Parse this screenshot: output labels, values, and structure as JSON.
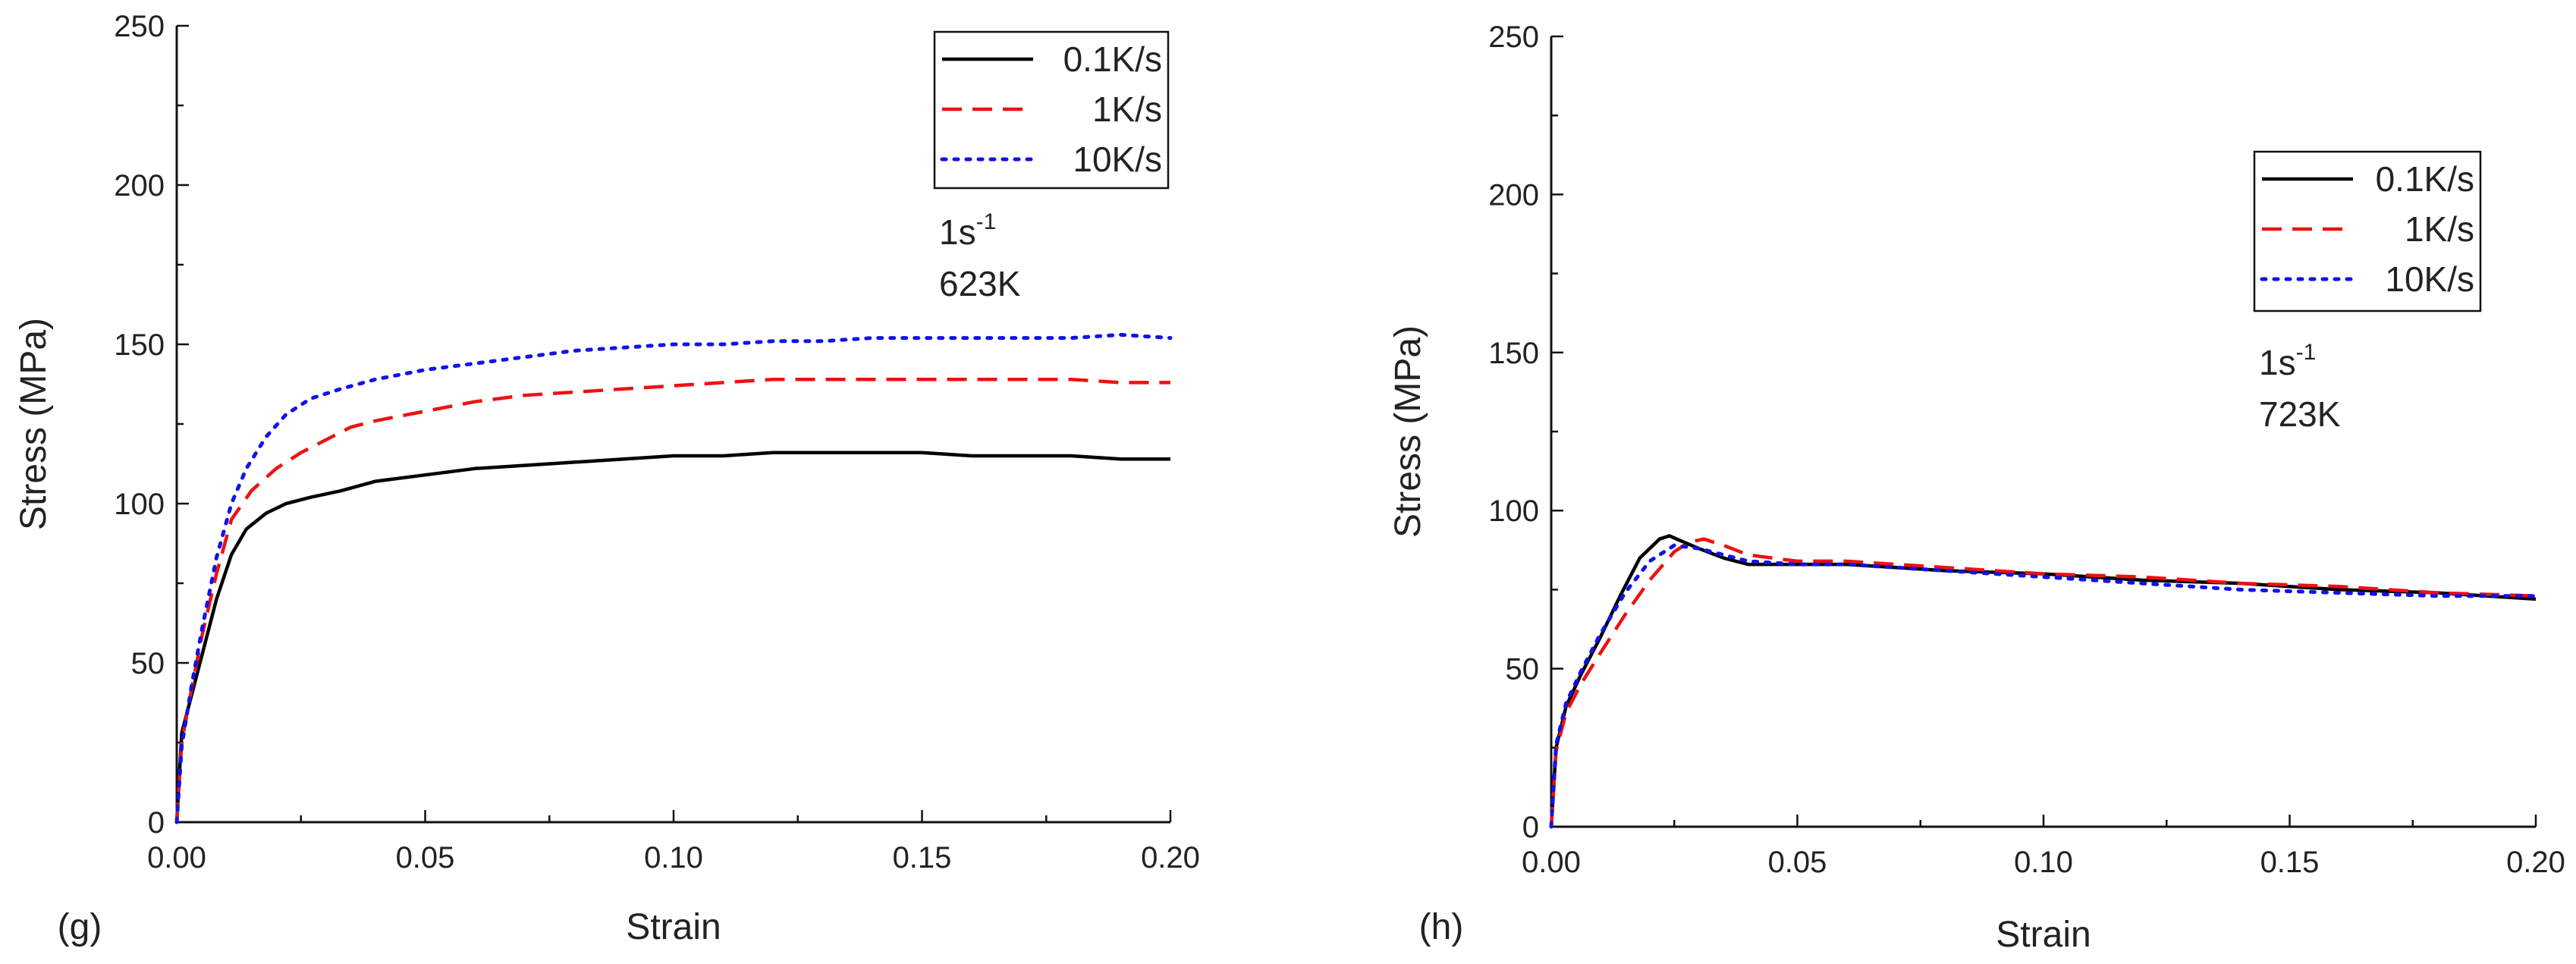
{
  "chart_data": [
    {
      "type": "line",
      "panel_label": "(g)",
      "xlabel": "Strain",
      "ylabel": "Stress (MPa)",
      "xlim": [
        0,
        0.2
      ],
      "ylim": [
        0,
        250
      ],
      "xticks": [
        0,
        0.05,
        0.1,
        0.15,
        0.2
      ],
      "xtick_labels": [
        "0.00",
        "0.05",
        "0.10",
        "0.15",
        "0.20"
      ],
      "yticks": [
        0,
        50,
        100,
        150,
        200,
        250
      ],
      "ytick_labels": [
        "0",
        "50",
        "100",
        "150",
        "200",
        "250"
      ],
      "legend_position": "top-right",
      "annotation": {
        "rate_base": "1s",
        "rate_exp": "-1",
        "temperature": "623K"
      },
      "series": [
        {
          "name": "0.1K/s",
          "color": "#000000",
          "style": "solid",
          "x": [
            0,
            0.001,
            0.003,
            0.005,
            0.008,
            0.011,
            0.014,
            0.018,
            0.022,
            0.027,
            0.033,
            0.04,
            0.05,
            0.06,
            0.07,
            0.08,
            0.09,
            0.1,
            0.11,
            0.12,
            0.13,
            0.14,
            0.15,
            0.16,
            0.17,
            0.18,
            0.19,
            0.2
          ],
          "values": [
            0,
            28,
            40,
            52,
            70,
            84,
            92,
            97,
            100,
            102,
            104,
            107,
            109,
            111,
            112,
            113,
            114,
            115,
            115,
            116,
            116,
            116,
            116,
            115,
            115,
            115,
            114,
            114
          ]
        },
        {
          "name": "1K/s",
          "color": "#ee1111",
          "style": "dashed",
          "x": [
            0,
            0.001,
            0.003,
            0.005,
            0.008,
            0.011,
            0.015,
            0.02,
            0.025,
            0.03,
            0.035,
            0.04,
            0.05,
            0.06,
            0.07,
            0.08,
            0.09,
            0.1,
            0.11,
            0.12,
            0.13,
            0.14,
            0.15,
            0.16,
            0.17,
            0.18,
            0.19,
            0.2
          ],
          "values": [
            0,
            25,
            42,
            58,
            78,
            95,
            104,
            111,
            116,
            120,
            124,
            126,
            129,
            132,
            134,
            135,
            136,
            137,
            138,
            139,
            139,
            139,
            139,
            139,
            139,
            139,
            138,
            138
          ]
        },
        {
          "name": "10K/s",
          "color": "#1111ee",
          "style": "dotted",
          "x": [
            0,
            0.001,
            0.003,
            0.005,
            0.008,
            0.011,
            0.014,
            0.018,
            0.022,
            0.027,
            0.033,
            0.04,
            0.05,
            0.06,
            0.07,
            0.08,
            0.09,
            0.1,
            0.11,
            0.12,
            0.13,
            0.14,
            0.15,
            0.16,
            0.17,
            0.18,
            0.19,
            0.2
          ],
          "values": [
            0,
            24,
            43,
            60,
            83,
            100,
            111,
            121,
            128,
            133,
            136,
            139,
            142,
            144,
            146,
            148,
            149,
            150,
            150,
            151,
            151,
            152,
            152,
            152,
            152,
            152,
            153,
            152
          ]
        }
      ]
    },
    {
      "type": "line",
      "panel_label": "(h)",
      "xlabel": "Strain",
      "ylabel": "Stress (MPa)",
      "xlim": [
        0,
        0.2
      ],
      "ylim": [
        0,
        250
      ],
      "xticks": [
        0,
        0.05,
        0.1,
        0.15,
        0.2
      ],
      "xtick_labels": [
        "0.00",
        "0.05",
        "0.10",
        "0.15",
        "0.20"
      ],
      "yticks": [
        0,
        50,
        100,
        150,
        200,
        250
      ],
      "ytick_labels": [
        "0",
        "50",
        "100",
        "150",
        "200",
        "250"
      ],
      "legend_position": "upper-right",
      "annotation": {
        "rate_base": "1s",
        "rate_exp": "-1",
        "temperature": "723K"
      },
      "series": [
        {
          "name": "0.1K/s",
          "color": "#000000",
          "style": "solid",
          "x": [
            0,
            0.001,
            0.003,
            0.006,
            0.01,
            0.014,
            0.018,
            0.022,
            0.024,
            0.027,
            0.03,
            0.035,
            0.04,
            0.05,
            0.06,
            0.07,
            0.08,
            0.1,
            0.12,
            0.14,
            0.16,
            0.18,
            0.2
          ],
          "values": [
            0,
            25,
            38,
            48,
            60,
            73,
            85,
            91,
            92,
            90,
            88,
            85,
            83,
            83,
            83,
            82,
            81,
            80,
            78,
            77,
            75,
            74,
            72
          ]
        },
        {
          "name": "1K/s",
          "color": "#ee1111",
          "style": "dashed",
          "x": [
            0,
            0.001,
            0.003,
            0.006,
            0.01,
            0.015,
            0.02,
            0.025,
            0.028,
            0.031,
            0.035,
            0.04,
            0.05,
            0.06,
            0.07,
            0.08,
            0.1,
            0.12,
            0.14,
            0.16,
            0.18,
            0.2
          ],
          "values": [
            0,
            24,
            36,
            45,
            55,
            67,
            78,
            87,
            90,
            91,
            89,
            86,
            84,
            84,
            83,
            82,
            80,
            79,
            77,
            76,
            74,
            73
          ]
        },
        {
          "name": "10K/s",
          "color": "#1111ee",
          "style": "dotted",
          "x": [
            0,
            0.001,
            0.003,
            0.006,
            0.01,
            0.015,
            0.02,
            0.025,
            0.03,
            0.035,
            0.04,
            0.05,
            0.06,
            0.07,
            0.08,
            0.1,
            0.12,
            0.14,
            0.16,
            0.18,
            0.2
          ],
          "values": [
            0,
            26,
            39,
            49,
            61,
            74,
            84,
            89,
            88,
            86,
            84,
            83,
            83,
            82,
            81,
            79,
            77,
            75,
            74,
            73,
            73
          ]
        }
      ]
    }
  ]
}
